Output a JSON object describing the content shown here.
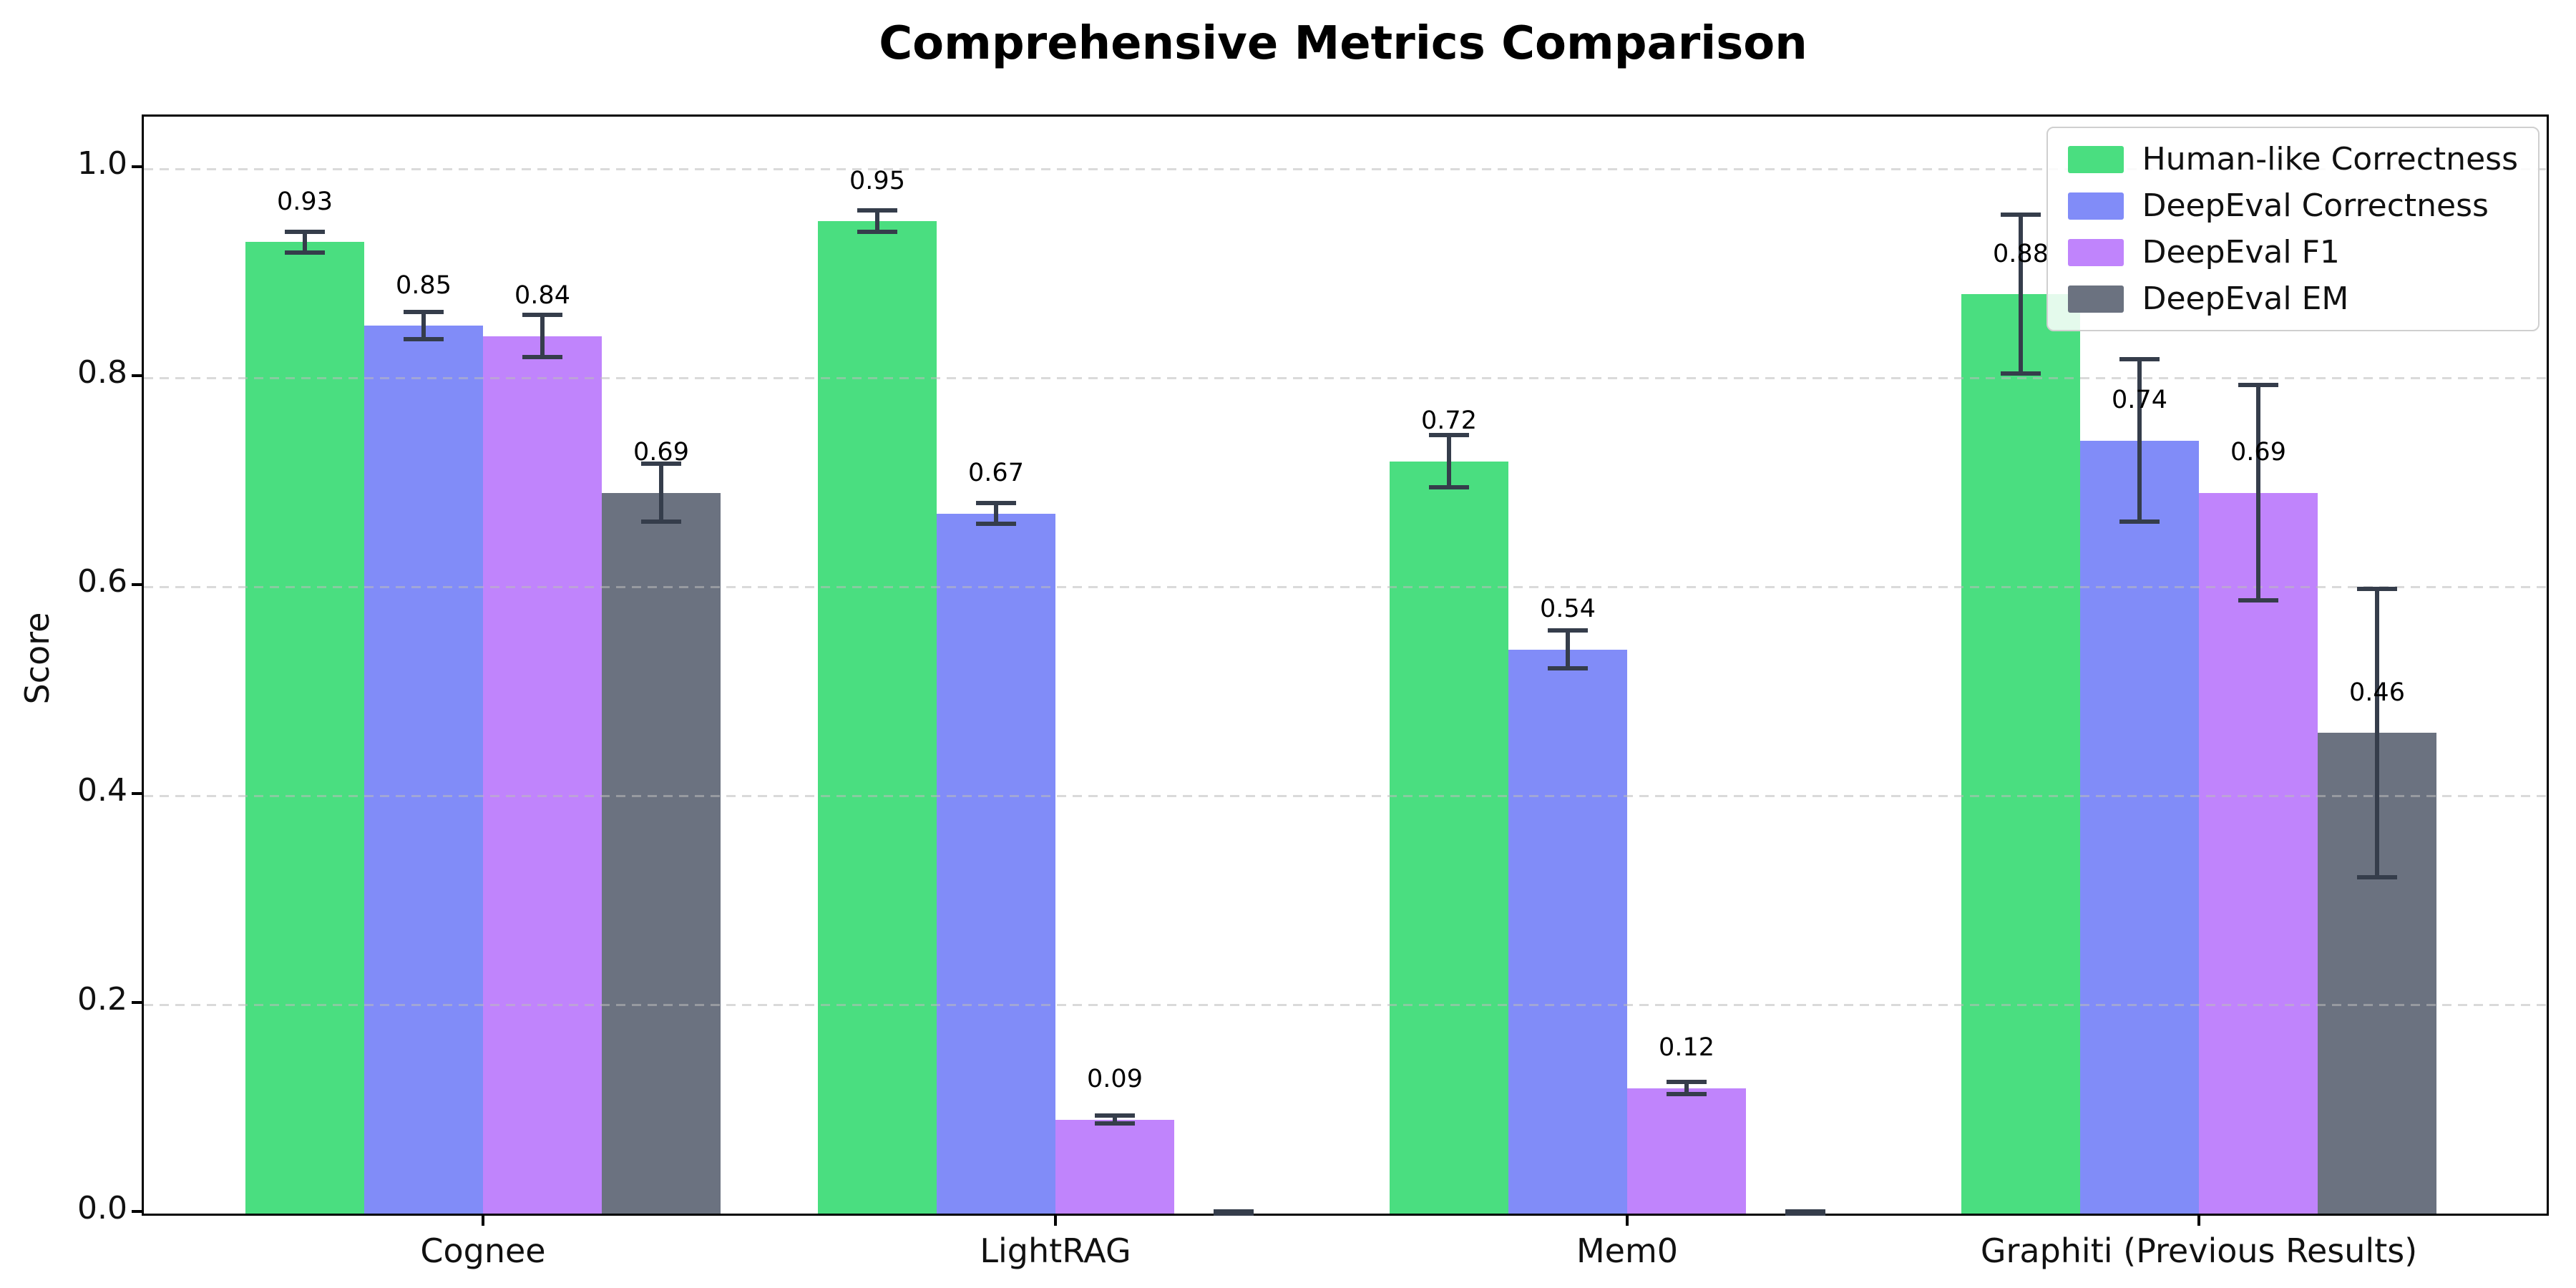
{
  "title": "Comprehensive Metrics Comparison",
  "ylabel": "Score",
  "chart_data": {
    "type": "bar",
    "title": "Comprehensive Metrics Comparison",
    "xlabel": "",
    "ylabel": "Score",
    "categories": [
      "Cognee",
      "LightRAG",
      "Mem0",
      "Graphiti (Previous Results)"
    ],
    "ylim": [
      0,
      1.05
    ],
    "yticks": [
      {
        "value": 0.0,
        "label": "0.0"
      },
      {
        "value": 0.2,
        "label": "0.2"
      },
      {
        "value": 0.4,
        "label": "0.4"
      },
      {
        "value": 0.6,
        "label": "0.6"
      },
      {
        "value": 0.8,
        "label": "0.8"
      },
      {
        "value": 1.0,
        "label": "1.0"
      }
    ],
    "grid": "horizontal-dashed",
    "legend_position": "upper-right",
    "error_bar_color": "#353d4b",
    "series": [
      {
        "name": "Human-like Correctness",
        "color": "#4ade80",
        "values": [
          0.93,
          0.95,
          0.72,
          0.88
        ],
        "errors": [
          0.012,
          0.012,
          0.027,
          0.078
        ],
        "labels": [
          "0.93",
          "0.95",
          "0.72",
          "0.88"
        ]
      },
      {
        "name": "DeepEval Correctness",
        "color": "#818cf8",
        "values": [
          0.85,
          0.67,
          0.54,
          0.74
        ],
        "errors": [
          0.015,
          0.012,
          0.02,
          0.08
        ],
        "labels": [
          "0.85",
          "0.67",
          "0.54",
          "0.74"
        ]
      },
      {
        "name": "DeepEval F1",
        "color": "#c084fc",
        "values": [
          0.84,
          0.09,
          0.12,
          0.69
        ],
        "errors": [
          0.022,
          0.006,
          0.008,
          0.105
        ],
        "labels": [
          "0.84",
          "0.09",
          "0.12",
          "0.69"
        ]
      },
      {
        "name": "DeepEval EM",
        "color": "#6b7280",
        "values": [
          0.69,
          0.0,
          0.0,
          0.46
        ],
        "errors": [
          0.03,
          0.002,
          0.002,
          0.14
        ],
        "labels": [
          "0.69",
          "",
          "",
          "0.46"
        ]
      }
    ]
  }
}
